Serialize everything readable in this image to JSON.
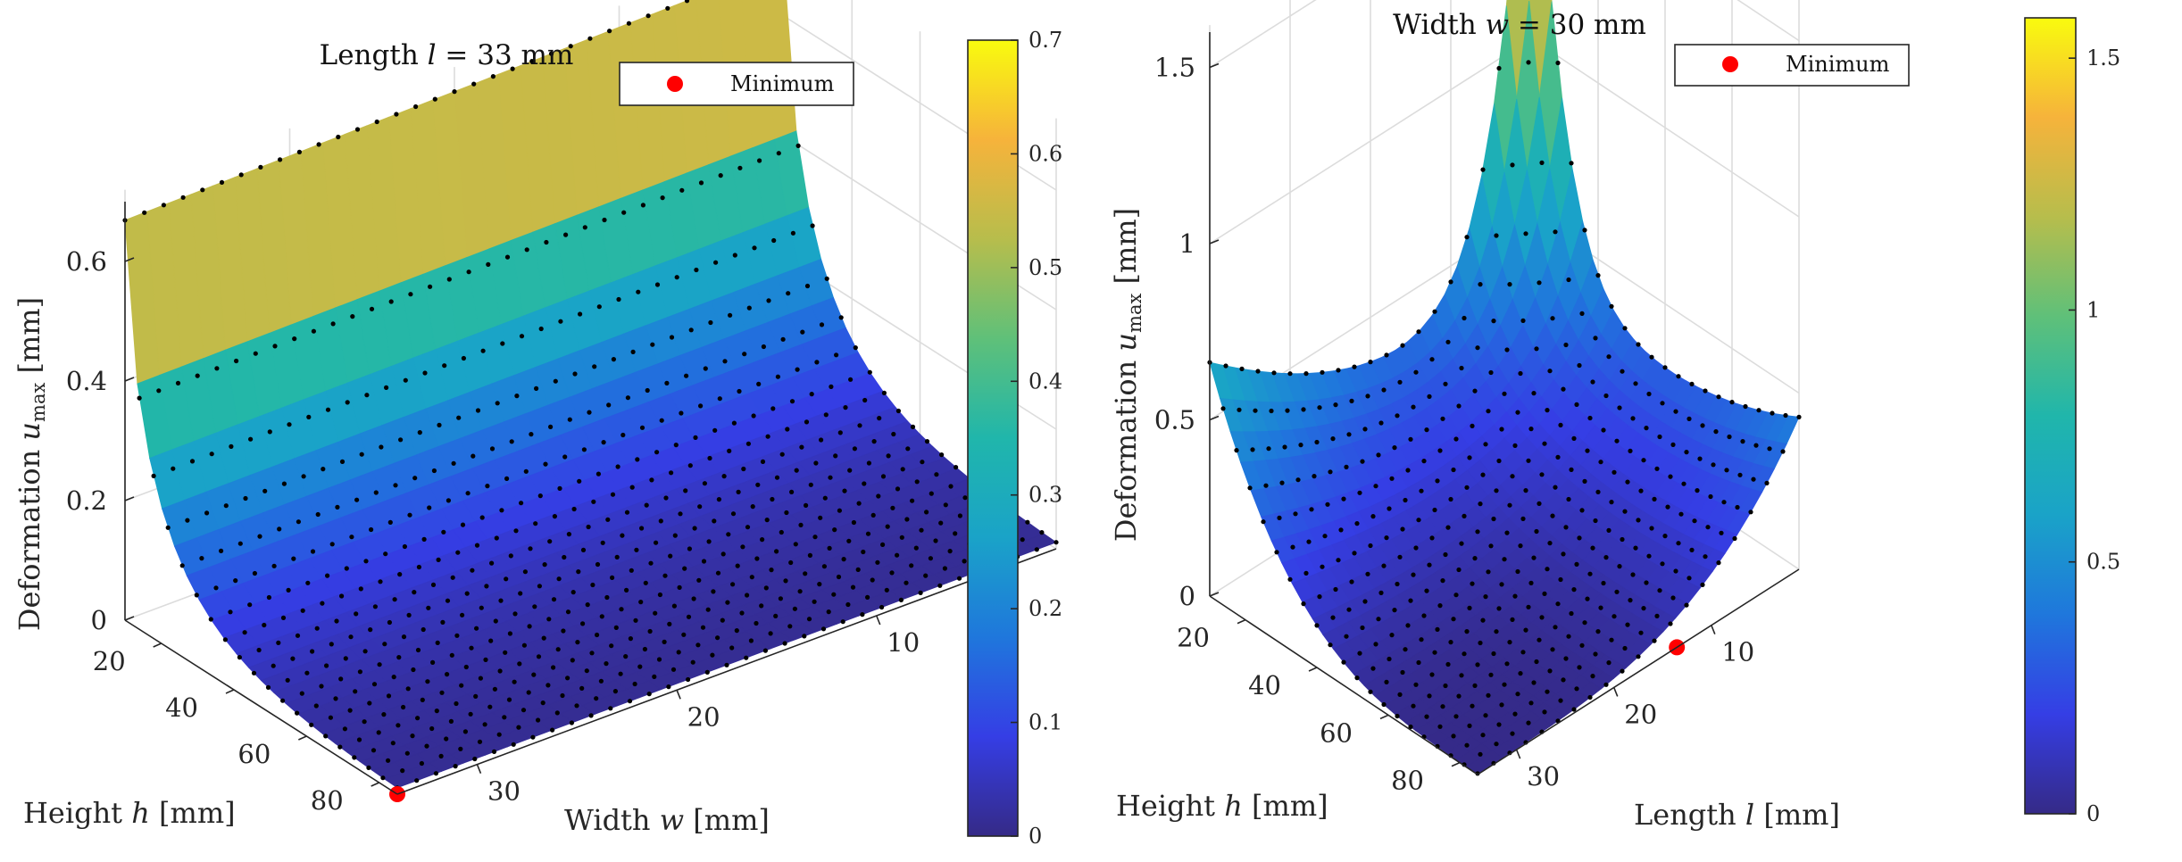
{
  "chart_data": [
    {
      "type": "surface",
      "title": "Length l = 33 mm",
      "title_parts": {
        "pre": "Length ",
        "var": "l",
        "post": " = 33 mm"
      },
      "xlabel": "Width w [mm]",
      "xlabel_parts": {
        "pre": "Width ",
        "var": "w",
        "post": " [mm]"
      },
      "ylabel": "Height h [mm]",
      "ylabel_parts": {
        "pre": "Height ",
        "var": "h",
        "post": " [mm]"
      },
      "zlabel": "Deformation u_max [mm]",
      "zlabel_parts": {
        "pre": "Deformation ",
        "var": "u",
        "sub": "max",
        "post": " [mm]"
      },
      "x_range": [
        1,
        34
      ],
      "y_range": [
        10,
        85
      ],
      "z_range": [
        0,
        0.7
      ],
      "x_ticks": [
        "10",
        "20",
        "30"
      ],
      "y_ticks": [
        "20",
        "40",
        "60",
        "80"
      ],
      "z_ticks": [
        "0",
        "0.2",
        "0.4",
        "0.6"
      ],
      "colorbar_ticks": [
        "0",
        "0.1",
        "0.2",
        "0.3",
        "0.4",
        "0.5",
        "0.6",
        "0.7"
      ],
      "colorbar_range": [
        0,
        0.7
      ],
      "colormap": "parula",
      "grid": true,
      "legend": {
        "label": "Minimum",
        "placement": "top-right",
        "marker_color": "#ff0000"
      },
      "sample_points": {
        "marker": "black dots",
        "color": "#000000"
      },
      "z_at_corners": {
        "w_min_h_min": 0.66,
        "w_max_h_min": 0.68,
        "w_max_h_max": 0.01
      },
      "minimum": {
        "w": 30,
        "h": 85,
        "u_max": 0.0
      }
    },
    {
      "type": "surface",
      "title": "Width w = 30 mm",
      "title_parts": {
        "pre": "Width ",
        "var": "w",
        "post": " = 30 mm"
      },
      "xlabel": "Length l [mm]",
      "xlabel_parts": {
        "pre": "Length ",
        "var": "l",
        "post": " [mm]"
      },
      "ylabel": "Height h [mm]",
      "ylabel_parts": {
        "pre": "Height ",
        "var": "h",
        "post": " [mm]"
      },
      "zlabel": "Deformation u_max [mm]",
      "zlabel_parts": {
        "pre": "Deformation ",
        "var": "u",
        "sub": "max",
        "post": " [mm]"
      },
      "x_range": [
        1,
        34
      ],
      "y_range": [
        10,
        85
      ],
      "z_range": [
        0,
        1.6
      ],
      "x_ticks": [
        "10",
        "20",
        "30"
      ],
      "y_ticks": [
        "20",
        "40",
        "60",
        "80"
      ],
      "z_ticks": [
        "0",
        "0.5",
        "1",
        "1.5"
      ],
      "colorbar_ticks": [
        "0",
        "0.5",
        "1",
        "1.5"
      ],
      "colorbar_range": [
        0,
        1.58
      ],
      "colormap": "parula",
      "grid": true,
      "legend": {
        "label": "Minimum",
        "placement": "top-right",
        "marker_color": "#ff0000"
      },
      "sample_points": {
        "marker": "black dots",
        "color": "#000000"
      },
      "z_at_corners": {
        "l_max_h_min": 0.66,
        "l_min_h_min": 1.58,
        "l_min_h_max": 0.52,
        "l_max_h_max": 0.0
      },
      "minimum": {
        "l": 20,
        "h": 85,
        "u_max": 0.0
      }
    }
  ]
}
